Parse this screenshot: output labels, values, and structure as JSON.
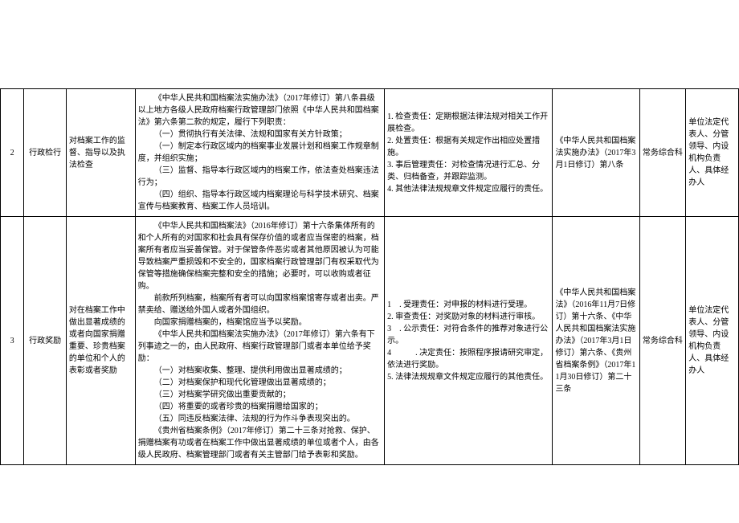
{
  "table": {
    "font_size": 10,
    "border_color": "#000000",
    "background_color": "#ffffff",
    "text_color": "#000000",
    "rows": [
      {
        "idx": "2",
        "type": "行政检行",
        "desc": "对档案工作的监督、指导以及执法检查",
        "basis": [
          "《中华人民共和国档案法实施办法》（2017年修订）第八条县级以上地方各级人民政府档案行政管理部门依照《中华人民共和国档案法》第六条第二款的规定，履行下列职责：",
          "（一）贯彻执行有关法律、法规和国家有关方针政策；",
          "（一）制定本行政区域内的档案事业发展计划和档案工作规章制度，并组织实施；",
          "（三）监督、指导本行政区域内的档案工作，依法查处档案违法行为；",
          "（四）组织、指导本行政区域内档案理论与科学技术研究、档案宣传与档案教育、档案工作人员培训。"
        ],
        "duty": [
          "1. 检查责任：定期根据法律法规对相关工作开展检查。",
          "2. 处置责任：根据有关规定作出相应处置措施。",
          "3. 事后管理责任：对检查情况进行汇总、分类、归档备查，并跟踪监测。",
          "4. 其他法律法规规章文件规定应履行的责任。"
        ],
        "ref": "《中华人民共和国档案法实施办法》（2017年3月1日修订）第八条",
        "dept": "常务综合科",
        "person": "单位法定代表人、分管领导、内设机构负责人、具体经办人"
      },
      {
        "idx": "3",
        "type": "行政奖励",
        "desc": "对在档案工作中做出显著成绩的或者向国家捐赠重要、珍贵档案的单位和个人的表彰或者奖励",
        "basis": [
          "《中华人民共和国档案法》（2016年修订）第十六条集体所有的和个人所有的对国家和社会具有保存价值的或者应当保密的档案，档案所有者应当妥善保管。对于保管条件恶劣或者其他原因被认为可能导致档案严重损毁和不安全的，国家档案行政管理部门有权采取代为保管等措施确保档案完整和安全的措施；必要时，可以收购或者征购。",
          "前款所列档案，档案所有者可以向国家档案馆寄存或者出卖。严禁卖给、赠送给外国人或者外国组织。",
          "向国家捐赠档案的，档案馆应当予以奖励。",
          "《中华人民共和国档案法实施办法》（2017年修订）第六条有下列事迹之一的，由人民政府、档案行政管理部门或者本单位给予奖励：",
          "（一）对档案收集、整理、提供利用做出显著成绩的；",
          "（二）对档案保护和现代化管理做出显著成绩的；",
          "（三）对档案学研究做出重要贡献的；",
          "（四）将重要的或者珍贵的档案捐赠给国家的；",
          "（五）同违反档案法律、法规的行为作斗争表现突出的。",
          "《贵州省档案条例》（2017年修订）第二十三条对抢救、保护、捐赠档案有功或者在档案工作中做出显著成绩的单位或者个人，由各级人民政府、档案管理部门或者有关主管部门给予表彰和奖励。"
        ],
        "duty": [
          "1　. 受理责任：对申报的材料进行受理。",
          "2. 审查责任：对奖励对象的材料进行审核。",
          "3　. 公示责任：对符合条件的推荐对象进行公示。",
          "4　　　. 决定责任：按照程序报请研究审定，依法进行奖励。",
          "5. 法律法规规章文件规定应履行的其他责任。"
        ],
        "ref": "《中华人民共和国档案法》（2016年11月7日修订）第十六条、《中华人民共和国档案法实施办法》（2017年3月1日修订）第六条、《贵州省档案条例》（2017年11月30日修订）第二十三条",
        "dept": "常务综合科",
        "person": "单位法定代表人、分管领导、内设机构负责人、具体经办人"
      }
    ]
  }
}
